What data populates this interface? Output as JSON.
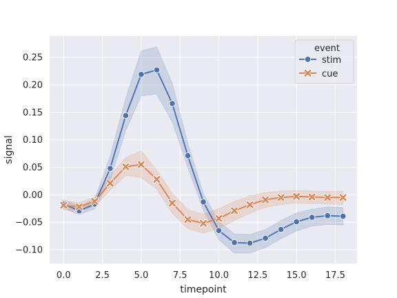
{
  "chart_data": {
    "type": "line",
    "title": "",
    "xlabel": "timepoint",
    "ylabel": "signal",
    "xlim": [
      -0.9,
      18.9
    ],
    "ylim": [
      -0.125,
      0.289
    ],
    "xticks": [
      0.0,
      2.5,
      5.0,
      7.5,
      10.0,
      12.5,
      15.0,
      17.5
    ],
    "xtick_labels": [
      "0.0",
      "2.5",
      "5.0",
      "7.5",
      "10.0",
      "12.5",
      "15.0",
      "17.5"
    ],
    "yticks": [
      -0.1,
      -0.05,
      0.0,
      0.05,
      0.1,
      0.15,
      0.2,
      0.25
    ],
    "ytick_labels": [
      "−0.10",
      "−0.05",
      "0.00",
      "0.05",
      "0.10",
      "0.15",
      "0.20",
      "0.25"
    ],
    "grid": true,
    "background": "#eaeaf2",
    "legend": {
      "title": "event",
      "placement": "top-right"
    },
    "x": [
      0,
      1,
      2,
      3,
      4,
      5,
      6,
      7,
      8,
      9,
      10,
      11,
      12,
      13,
      14,
      15,
      16,
      17,
      18
    ],
    "series": [
      {
        "name": "stim",
        "color": "#4c72b0",
        "marker": "circle",
        "values": [
          -0.017,
          -0.029,
          -0.017,
          0.048,
          0.144,
          0.219,
          0.227,
          0.166,
          0.071,
          -0.013,
          -0.065,
          -0.087,
          -0.088,
          -0.079,
          -0.063,
          -0.049,
          -0.041,
          -0.038,
          -0.039
        ],
        "ci_low": [
          -0.025,
          -0.036,
          -0.026,
          0.026,
          0.116,
          0.18,
          0.183,
          0.132,
          0.049,
          -0.028,
          -0.082,
          -0.106,
          -0.106,
          -0.096,
          -0.08,
          -0.066,
          -0.057,
          -0.054,
          -0.055
        ],
        "ci_high": [
          -0.009,
          -0.021,
          -0.008,
          0.071,
          0.176,
          0.262,
          0.269,
          0.203,
          0.094,
          0.003,
          -0.049,
          -0.071,
          -0.072,
          -0.063,
          -0.047,
          -0.033,
          -0.026,
          -0.022,
          -0.023
        ]
      },
      {
        "name": "cue",
        "color": "#dd8452",
        "marker": "x",
        "values": [
          -0.019,
          -0.022,
          -0.012,
          0.021,
          0.051,
          0.055,
          0.028,
          -0.015,
          -0.045,
          -0.052,
          -0.043,
          -0.029,
          -0.018,
          -0.009,
          -0.005,
          -0.003,
          -0.004,
          -0.005,
          -0.005
        ],
        "ci_low": [
          -0.027,
          -0.03,
          -0.021,
          0.008,
          0.035,
          0.031,
          0.01,
          -0.034,
          -0.062,
          -0.07,
          -0.062,
          -0.047,
          -0.034,
          -0.023,
          -0.018,
          -0.015,
          -0.016,
          -0.017,
          -0.018
        ],
        "ci_high": [
          -0.011,
          -0.014,
          -0.004,
          0.035,
          0.068,
          0.08,
          0.045,
          0.003,
          -0.027,
          -0.035,
          -0.025,
          -0.012,
          -0.002,
          0.004,
          0.007,
          0.008,
          0.007,
          0.006,
          0.007
        ]
      }
    ]
  }
}
